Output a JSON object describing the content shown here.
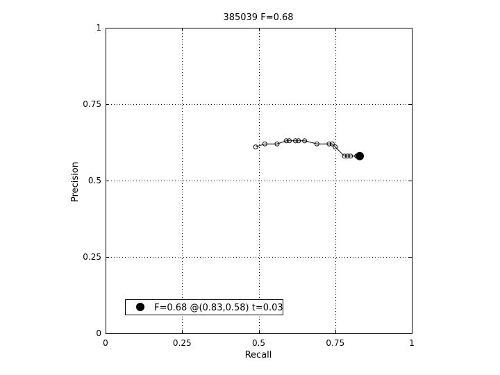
{
  "chart_data": {
    "type": "line",
    "title": "385039 F=0.68",
    "xlabel": "Recall",
    "ylabel": "Precision",
    "xlim": [
      0,
      1
    ],
    "ylim": [
      0,
      1
    ],
    "xticks": [
      "0",
      "0.25",
      "0.5",
      "0.75",
      "1"
    ],
    "yticks": [
      "0",
      "0.25",
      "0.5",
      "0.75",
      "1"
    ],
    "grid": true,
    "series": [
      {
        "x": [
          0.49,
          0.52,
          0.56,
          0.59,
          0.6,
          0.62,
          0.63,
          0.65,
          0.69,
          0.73,
          0.74,
          0.75,
          0.78,
          0.79,
          0.8,
          0.82,
          0.83
        ],
        "y": [
          0.61,
          0.62,
          0.62,
          0.63,
          0.63,
          0.63,
          0.63,
          0.63,
          0.62,
          0.62,
          0.62,
          0.61,
          0.58,
          0.58,
          0.58,
          0.58,
          0.58
        ]
      }
    ],
    "best_point": {
      "x": 0.83,
      "y": 0.58
    },
    "legend": {
      "text": "F=0.68 @(0.83,0.58) t=0.03",
      "placement": "bottom-left"
    }
  }
}
